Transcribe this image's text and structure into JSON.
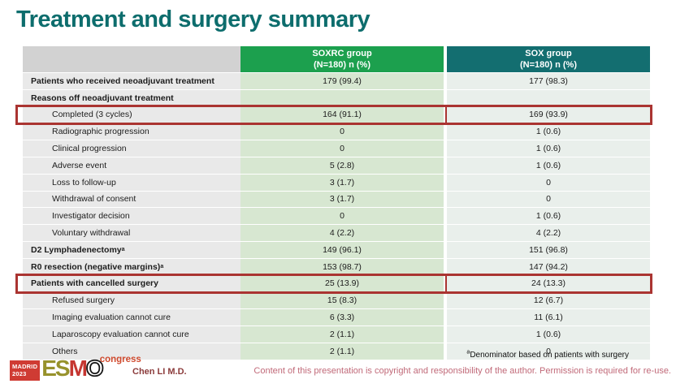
{
  "slide": {
    "title": "Treatment and surgery summary",
    "footnote_marker": "a",
    "footnote": "Denominator based on patients with surgery",
    "author": "Chen LI M.D.",
    "copyright": "Content of this presentation is copyright and responsibility of the author. Permission is required for re-use."
  },
  "logo": {
    "venue_line1": "MADRID",
    "venue_line2": "2023",
    "letter_e": "E",
    "letter_s": "S",
    "letter_m": "M",
    "letter_o": "O",
    "suffix": "congress"
  },
  "colors": {
    "title_teal": "#0d6d6d",
    "header_green": "#1ca04e",
    "header_teal": "#136e70",
    "cell_green": "#d7e7d1",
    "cell_light": "#e9efeb",
    "label_gray": "#e9e9e9",
    "highlight_red": "#aa3431",
    "author_red": "#8b3b3b",
    "copyright_rose": "#c16a79"
  },
  "chart_data": {
    "type": "table",
    "title": "Treatment and surgery summary",
    "columns": [
      "SOXRC group (N=180) n (%)",
      "SOX group (N=180) n (%)"
    ]
  },
  "table": {
    "header": {
      "col1_line1": "SOXRC group",
      "col1_line2": "(N=180)  n (%)",
      "col2_line1": "SOX group",
      "col2_line2": "(N=180)  n (%)"
    },
    "rows": [
      {
        "label": "Patients who received neoadjuvant treatment",
        "bold": true,
        "indent": false,
        "sup": "",
        "soxrc": "179 (99.4)",
        "sox": "177 (98.3)",
        "highlight": false
      },
      {
        "label": "Reasons off neoadjuvant treatment",
        "bold": true,
        "indent": false,
        "sup": "",
        "soxrc": "",
        "sox": "",
        "highlight": false
      },
      {
        "label": "Completed (3 cycles)",
        "bold": false,
        "indent": true,
        "sup": "",
        "soxrc": "164 (91.1)",
        "sox": "169 (93.9)",
        "highlight": true
      },
      {
        "label": "Radiographic progression",
        "bold": false,
        "indent": true,
        "sup": "",
        "soxrc": "0",
        "sox": "1 (0.6)",
        "highlight": false
      },
      {
        "label": "Clinical progression",
        "bold": false,
        "indent": true,
        "sup": "",
        "soxrc": "0",
        "sox": "1 (0.6)",
        "highlight": false
      },
      {
        "label": "Adverse event",
        "bold": false,
        "indent": true,
        "sup": "",
        "soxrc": "5 (2.8)",
        "sox": "1 (0.6)",
        "highlight": false
      },
      {
        "label": "Loss to follow-up",
        "bold": false,
        "indent": true,
        "sup": "",
        "soxrc": "3 (1.7)",
        "sox": "0",
        "highlight": false
      },
      {
        "label": "Withdrawal of consent",
        "bold": false,
        "indent": true,
        "sup": "",
        "soxrc": "3 (1.7)",
        "sox": "0",
        "highlight": false
      },
      {
        "label": "Investigator decision",
        "bold": false,
        "indent": true,
        "sup": "",
        "soxrc": "0",
        "sox": "1 (0.6)",
        "highlight": false
      },
      {
        "label": "Voluntary withdrawal",
        "bold": false,
        "indent": true,
        "sup": "",
        "soxrc": "4 (2.2)",
        "sox": "4 (2.2)",
        "highlight": false
      },
      {
        "label": "D2 Lymphadenectomy",
        "bold": true,
        "indent": false,
        "sup": "a",
        "soxrc": "149 (96.1)",
        "sox": "151 (96.8)",
        "highlight": false
      },
      {
        "label": "R0 resection (negative margins)",
        "bold": true,
        "indent": false,
        "sup": "a",
        "soxrc": "153 (98.7)",
        "sox": "147 (94.2)",
        "highlight": false
      },
      {
        "label": "Patients with cancelled surgery",
        "bold": true,
        "indent": false,
        "sup": "",
        "soxrc": "25 (13.9)",
        "sox": "24 (13.3)",
        "highlight": true
      },
      {
        "label": "Refused surgery",
        "bold": false,
        "indent": true,
        "sup": "",
        "soxrc": "15 (8.3)",
        "sox": "12 (6.7)",
        "highlight": false
      },
      {
        "label": "Imaging evaluation cannot cure",
        "bold": false,
        "indent": true,
        "sup": "",
        "soxrc": "6 (3.3)",
        "sox": "11 (6.1)",
        "highlight": false
      },
      {
        "label": "Laparoscopy evaluation cannot cure",
        "bold": false,
        "indent": true,
        "sup": "",
        "soxrc": "2 (1.1)",
        "sox": "1 (0.6)",
        "highlight": false
      },
      {
        "label": "Others",
        "bold": false,
        "indent": true,
        "sup": "",
        "soxrc": "2 (1.1)",
        "sox": "0",
        "highlight": false
      }
    ]
  }
}
